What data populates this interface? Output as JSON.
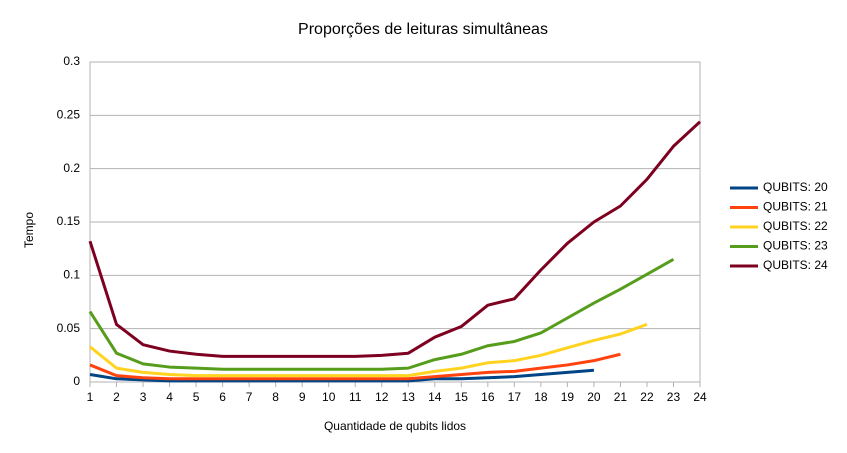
{
  "chart_data": {
    "type": "line",
    "title": "Proporções de leituras simultâneas",
    "xlabel": "Quantidade de qubits lidos",
    "ylabel": "Tempo",
    "x": [
      1,
      2,
      3,
      4,
      5,
      6,
      7,
      8,
      9,
      10,
      11,
      12,
      13,
      14,
      15,
      16,
      17,
      18,
      19,
      20,
      21,
      22,
      23,
      24
    ],
    "xlim": [
      1,
      24
    ],
    "xticks": [
      1,
      2,
      3,
      4,
      5,
      6,
      7,
      8,
      9,
      10,
      11,
      12,
      13,
      14,
      15,
      16,
      17,
      18,
      19,
      20,
      21,
      22,
      23,
      24
    ],
    "ylim": [
      0,
      0.3
    ],
    "yticks": [
      0,
      0.05,
      0.1,
      0.15,
      0.2,
      0.25,
      0.3
    ],
    "grid": true,
    "legend": "right",
    "series": [
      {
        "name": "QUBITS: 20",
        "color": "#004586",
        "values": [
          0.007,
          0.003,
          0.002,
          0.001,
          0.001,
          0.001,
          0.001,
          0.001,
          0.001,
          0.001,
          0.001,
          0.001,
          0.001,
          0.003,
          0.003,
          0.004,
          0.005,
          0.007,
          0.009,
          0.011,
          null,
          null,
          null,
          null
        ]
      },
      {
        "name": "QUBITS: 21",
        "color": "#ff420e",
        "values": [
          0.016,
          0.006,
          0.004,
          0.003,
          0.003,
          0.003,
          0.003,
          0.003,
          0.003,
          0.003,
          0.003,
          0.003,
          0.003,
          0.005,
          0.007,
          0.009,
          0.01,
          0.013,
          0.016,
          0.02,
          0.026,
          null,
          null,
          null
        ]
      },
      {
        "name": "QUBITS: 22",
        "color": "#ffd320",
        "values": [
          0.033,
          0.013,
          0.009,
          0.007,
          0.006,
          0.006,
          0.006,
          0.006,
          0.006,
          0.006,
          0.006,
          0.006,
          0.006,
          0.01,
          0.013,
          0.018,
          0.02,
          0.025,
          0.032,
          0.039,
          0.045,
          0.054,
          null,
          null
        ]
      },
      {
        "name": "QUBITS: 23",
        "color": "#579d1c",
        "values": [
          0.066,
          0.027,
          0.017,
          0.014,
          0.013,
          0.012,
          0.012,
          0.012,
          0.012,
          0.012,
          0.012,
          0.012,
          0.013,
          0.021,
          0.026,
          0.034,
          0.038,
          0.046,
          0.06,
          0.074,
          0.087,
          0.101,
          0.115,
          null
        ]
      },
      {
        "name": "QUBITS: 24",
        "color": "#7e0021",
        "values": [
          0.132,
          0.054,
          0.035,
          0.029,
          0.026,
          0.024,
          0.024,
          0.024,
          0.024,
          0.024,
          0.024,
          0.025,
          0.027,
          0.042,
          0.052,
          0.072,
          0.078,
          0.105,
          0.13,
          0.15,
          0.165,
          0.19,
          0.221,
          0.244
        ]
      }
    ]
  }
}
